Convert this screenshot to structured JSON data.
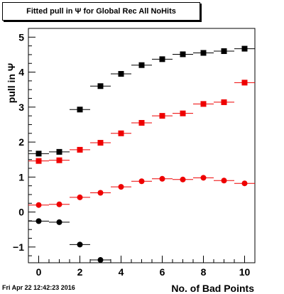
{
  "chart_data": {
    "type": "scatter",
    "title": "Fitted pull in  Ψ  for Global Rec All NoHits",
    "xlabel": "No. of Bad Points",
    "ylabel": "pull in  Ψ",
    "xlim": [
      -0.5,
      10.5
    ],
    "ylim": [
      -1.45,
      5.25
    ],
    "xticks": [
      0,
      2,
      4,
      6,
      8,
      10
    ],
    "xtick_labels": [
      "0",
      "2",
      "4",
      "6",
      "8",
      "10"
    ],
    "yticks": [
      -1,
      0,
      1,
      2,
      3,
      4,
      5
    ],
    "ytick_labels": [
      "−1",
      "0",
      "1",
      "2",
      "3",
      "4",
      "5"
    ],
    "grid": false,
    "series": [
      {
        "marker": "square",
        "color": "#000000",
        "x": [
          0,
          1,
          2,
          3,
          4,
          5,
          6,
          7,
          8,
          9,
          10
        ],
        "y": [
          1.67,
          1.72,
          2.93,
          3.6,
          3.95,
          4.2,
          4.37,
          4.51,
          4.55,
          4.6,
          4.67
        ]
      },
      {
        "marker": "square",
        "color": "#ee0000",
        "x": [
          0,
          1,
          2,
          3,
          4,
          5,
          6,
          7,
          8,
          9,
          10
        ],
        "y": [
          1.46,
          1.48,
          1.78,
          1.98,
          2.25,
          2.55,
          2.75,
          2.82,
          3.09,
          3.14,
          3.7
        ]
      },
      {
        "marker": "circle",
        "color": "#ee0000",
        "x": [
          0,
          1,
          2,
          3,
          4,
          5,
          6,
          7,
          8,
          9,
          10
        ],
        "y": [
          0.2,
          0.22,
          0.42,
          0.55,
          0.72,
          0.88,
          0.95,
          0.93,
          0.98,
          0.9,
          0.82
        ]
      },
      {
        "marker": "circle",
        "color": "#000000",
        "x": [
          0,
          1,
          2,
          3
        ],
        "y": [
          -0.26,
          -0.29,
          -0.93,
          -1.37
        ]
      }
    ]
  },
  "footer": {
    "timestamp": "Fri Apr 22 12:42:23 2016"
  }
}
